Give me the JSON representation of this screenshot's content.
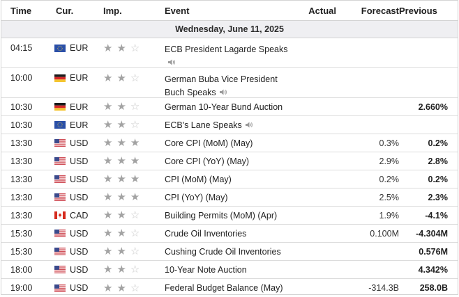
{
  "headers": {
    "time": "Time",
    "currency": "Cur.",
    "importance": "Imp.",
    "event": "Event",
    "actual": "Actual",
    "forecast": "Forecast",
    "previous": "Previous"
  },
  "day_label": "Wednesday, June 11, 2025",
  "colors": {
    "star_on": "#a3a3a3",
    "star_off": "#c8c8c8",
    "day_band": "#efeff2"
  },
  "rows": [
    {
      "time": "04:15",
      "currency": "EUR",
      "flag": "eu-flag-icon",
      "importance": 2,
      "event": "ECB President Lagarde Speaks",
      "event_line2": "",
      "speaker": true,
      "speaker_newline": true,
      "actual": "",
      "forecast": "",
      "previous": ""
    },
    {
      "time": "10:00",
      "currency": "EUR",
      "flag": "de-flag-icon",
      "importance": 2,
      "event": "German Buba Vice President",
      "event_line2": "Buch Speaks",
      "speaker": true,
      "speaker_newline": false,
      "actual": "",
      "forecast": "",
      "previous": ""
    },
    {
      "time": "10:30",
      "currency": "EUR",
      "flag": "de-flag-icon",
      "importance": 2,
      "event": "German 10-Year Bund Auction",
      "event_line2": "",
      "speaker": false,
      "actual": "",
      "forecast": "",
      "previous": "2.660%"
    },
    {
      "time": "10:30",
      "currency": "EUR",
      "flag": "eu-flag-icon",
      "importance": 2,
      "event": "ECB's Lane Speaks",
      "event_line2": "",
      "speaker": true,
      "speaker_newline": false,
      "actual": "",
      "forecast": "",
      "previous": ""
    },
    {
      "time": "13:30",
      "currency": "USD",
      "flag": "us-flag-icon",
      "importance": 3,
      "event": "Core CPI (MoM) (May)",
      "event_line2": "",
      "speaker": false,
      "actual": "",
      "forecast": "0.3%",
      "previous": "0.2%"
    },
    {
      "time": "13:30",
      "currency": "USD",
      "flag": "us-flag-icon",
      "importance": 3,
      "event": "Core CPI (YoY) (May)",
      "event_line2": "",
      "speaker": false,
      "actual": "",
      "forecast": "2.9%",
      "previous": "2.8%"
    },
    {
      "time": "13:30",
      "currency": "USD",
      "flag": "us-flag-icon",
      "importance": 3,
      "event": "CPI (MoM) (May)",
      "event_line2": "",
      "speaker": false,
      "actual": "",
      "forecast": "0.2%",
      "previous": "0.2%"
    },
    {
      "time": "13:30",
      "currency": "USD",
      "flag": "us-flag-icon",
      "importance": 3,
      "event": "CPI (YoY) (May)",
      "event_line2": "",
      "speaker": false,
      "actual": "",
      "forecast": "2.5%",
      "previous": "2.3%"
    },
    {
      "time": "13:30",
      "currency": "CAD",
      "flag": "ca-flag-icon",
      "importance": 2,
      "event": "Building Permits (MoM) (Apr)",
      "event_line2": "",
      "speaker": false,
      "actual": "",
      "forecast": "1.9%",
      "previous": "-4.1%"
    },
    {
      "time": "15:30",
      "currency": "USD",
      "flag": "us-flag-icon",
      "importance": 2,
      "event": "Crude Oil Inventories",
      "event_line2": "",
      "speaker": false,
      "actual": "",
      "forecast": "0.100M",
      "previous": "-4.304M"
    },
    {
      "time": "15:30",
      "currency": "USD",
      "flag": "us-flag-icon",
      "importance": 2,
      "event": "Cushing Crude Oil Inventories",
      "event_line2": "",
      "speaker": false,
      "actual": "",
      "forecast": "",
      "previous": "0.576M"
    },
    {
      "time": "18:00",
      "currency": "USD",
      "flag": "us-flag-icon",
      "importance": 2,
      "event": "10-Year Note Auction",
      "event_line2": "",
      "speaker": false,
      "actual": "",
      "forecast": "",
      "previous": "4.342%"
    },
    {
      "time": "19:00",
      "currency": "USD",
      "flag": "us-flag-icon",
      "importance": 2,
      "event": "Federal Budget Balance (May)",
      "event_line2": "",
      "speaker": false,
      "actual": "",
      "forecast": "-314.3B",
      "previous": "258.0B"
    }
  ]
}
